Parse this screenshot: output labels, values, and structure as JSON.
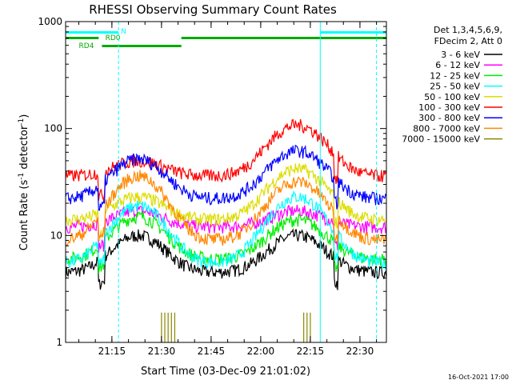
{
  "chart_data": {
    "type": "line",
    "title": "RHESSI Observing Summary Count Rates",
    "xlabel": "Start Time (03-Dec-09 21:01:02)",
    "ylabel_main": "Count Rate (s",
    "ylabel_sup1": "-1",
    "ylabel_mid": " detector",
    "ylabel_sup2": "-1",
    "ylabel_end": ")",
    "yscale": "log",
    "xlim_minutes": [
      0,
      97
    ],
    "ylim": [
      1,
      1000
    ],
    "x_ticks": [
      {
        "label": "21:15",
        "min": 14
      },
      {
        "label": "21:30",
        "min": 29
      },
      {
        "label": "21:45",
        "min": 44
      },
      {
        "label": "22:00",
        "min": 59
      },
      {
        "label": "22:15",
        "min": 74
      },
      {
        "label": "22:30",
        "min": 89
      }
    ],
    "y_ticks": [
      {
        "label": "1",
        "v": 1
      },
      {
        "label": "10",
        "v": 10
      },
      {
        "label": "100",
        "v": 100
      },
      {
        "label": "1000",
        "v": 1000
      }
    ],
    "legend_header": [
      "Det 1,3,4,5,6,9,",
      "FDecim 2, Att 0"
    ],
    "series": [
      {
        "name": "3 - 6 keV",
        "color": "#000000",
        "base": 4.5,
        "peak1": 10,
        "peak2": 10
      },
      {
        "name": "6 - 12 keV",
        "color": "#ff00ff",
        "base": 12,
        "peak1": 17,
        "peak2": 17
      },
      {
        "name": "12 - 25 keV",
        "color": "#00ee00",
        "base": 6,
        "peak1": 15,
        "peak2": 14
      },
      {
        "name": "25 - 50 keV",
        "color": "#00ffff",
        "base": 5.5,
        "peak1": 19,
        "peak2": 23
      },
      {
        "name": "50 - 100 keV",
        "color": "#dddd00",
        "base": 14,
        "peak1": 23,
        "peak2": 42
      },
      {
        "name": "100 - 300 keV",
        "color": "#ff0000",
        "base": 36,
        "peak1": 50,
        "peak2": 108
      },
      {
        "name": "300 - 800 keV",
        "color": "#0000ff",
        "base": 22,
        "peak1": 52,
        "peak2": 62
      },
      {
        "name": "800 - 7000 keV",
        "color": "#ff8800",
        "base": 9,
        "peak1": 36,
        "peak2": 32
      },
      {
        "name": "7000 - 15000 keV",
        "color": "#888800",
        "base": 0,
        "peak1": 0,
        "peak2": 0
      }
    ],
    "flags": [
      {
        "label": "N",
        "color": "#00ffff"
      },
      {
        "label": "RD0",
        "color": "#00aa00"
      },
      {
        "label": "RD4",
        "color": "#00aa00"
      }
    ],
    "timestamp": "16-Oct-2021 17:00"
  }
}
